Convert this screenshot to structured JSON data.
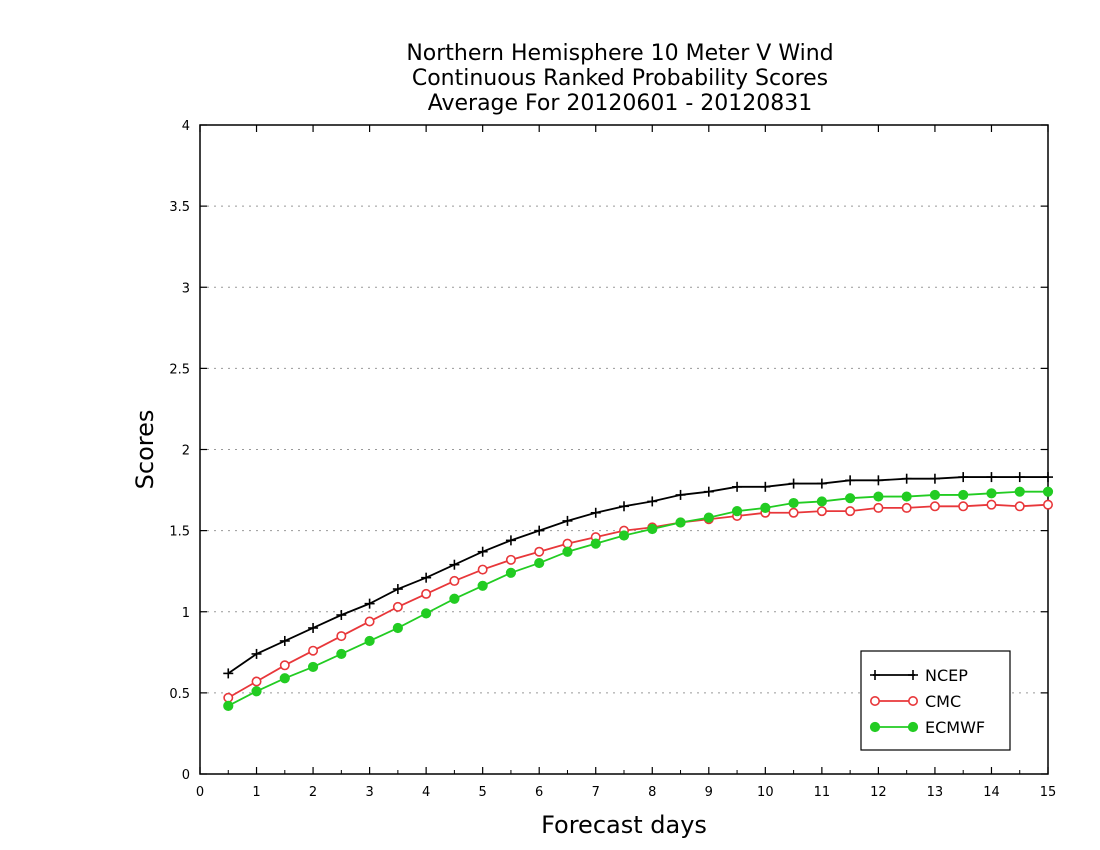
{
  "chart_data": {
    "type": "line",
    "title_lines": [
      "Northern Hemisphere 10 Meter V Wind",
      "Continuous Ranked Probability Scores",
      "Average For 20120601 - 20120831"
    ],
    "xlabel": "Forecast days",
    "ylabel": "Scores",
    "xlim": [
      0,
      15
    ],
    "ylim": [
      0,
      4
    ],
    "xticks": [
      0,
      1,
      2,
      3,
      4,
      5,
      6,
      7,
      8,
      9,
      10,
      11,
      12,
      13,
      14,
      15
    ],
    "xtick_labels": [
      "0",
      "1",
      "2",
      "3",
      "4",
      "5",
      "6",
      "7",
      "8",
      "9",
      "10",
      "11",
      "12",
      "13",
      "14",
      "15"
    ],
    "yticks": [
      0,
      0.5,
      1,
      1.5,
      2,
      2.5,
      3,
      3.5,
      4
    ],
    "ytick_labels": [
      "0",
      "0.5",
      "1",
      "1.5",
      "2",
      "2.5",
      "3",
      "3.5",
      "4"
    ],
    "grid": "horizontal dotted",
    "legend_position": "bottom-right",
    "x": [
      0.5,
      1,
      1.5,
      2,
      2.5,
      3,
      3.5,
      4,
      4.5,
      5,
      5.5,
      6,
      6.5,
      7,
      7.5,
      8,
      8.5,
      9,
      9.5,
      10,
      10.5,
      11,
      11.5,
      12,
      12.5,
      13,
      13.5,
      14,
      14.5,
      15
    ],
    "series": [
      {
        "name": "NCEP",
        "color": "#000000",
        "marker": "plus",
        "values": [
          0.62,
          0.74,
          0.82,
          0.9,
          0.98,
          1.05,
          1.14,
          1.21,
          1.29,
          1.37,
          1.44,
          1.5,
          1.56,
          1.61,
          1.65,
          1.68,
          1.72,
          1.74,
          1.77,
          1.77,
          1.79,
          1.79,
          1.81,
          1.81,
          1.82,
          1.82,
          1.83,
          1.83,
          1.83,
          1.83
        ]
      },
      {
        "name": "CMC",
        "color": "#e8373a",
        "marker": "open-circle",
        "values": [
          0.47,
          0.57,
          0.67,
          0.76,
          0.85,
          0.94,
          1.03,
          1.11,
          1.19,
          1.26,
          1.32,
          1.37,
          1.42,
          1.46,
          1.5,
          1.52,
          1.55,
          1.57,
          1.59,
          1.61,
          1.61,
          1.62,
          1.62,
          1.64,
          1.64,
          1.65,
          1.65,
          1.66,
          1.65,
          1.66
        ]
      },
      {
        "name": "ECMWF",
        "color": "#22cc22",
        "marker": "filled-circle",
        "values": [
          0.42,
          0.51,
          0.59,
          0.66,
          0.74,
          0.82,
          0.9,
          0.99,
          1.08,
          1.16,
          1.24,
          1.3,
          1.37,
          1.42,
          1.47,
          1.51,
          1.55,
          1.58,
          1.62,
          1.64,
          1.67,
          1.68,
          1.7,
          1.71,
          1.71,
          1.72,
          1.72,
          1.73,
          1.74,
          1.74
        ]
      }
    ]
  }
}
